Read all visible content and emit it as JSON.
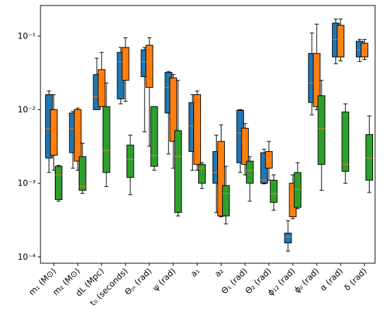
{
  "chart_data": {
    "type": "box",
    "log_y": true,
    "categories": [
      "m₁ (M⊙)",
      "m₂ (M⊙)",
      "dL (Mpc)",
      "t₀ (seconds)",
      "Θⱼₙ (rad)",
      "ψ (rad)",
      "a₁",
      "a₂",
      "Θ₁ (rad)",
      "Θ₂ (rad)",
      "ϕ₁₂ (rad)",
      "ϕⱼₗ (rad)",
      "α (rad)",
      "δ (rad)"
    ],
    "median_color": "#ff7f0e",
    "series": [
      {
        "color": "#1f77b4",
        "whislo": [
          0.0014,
          0.0016,
          0.01,
          0.012,
          0.005,
          0.0025,
          0.0015,
          0.0004,
          0.0014,
          0.00098,
          0.00012,
          0.0085,
          0.042,
          0.045
        ],
        "q1": [
          0.0022,
          0.0026,
          0.01,
          0.014,
          0.028,
          0.009,
          0.0027,
          0.001,
          0.0019,
          0.001,
          0.000155,
          0.0125,
          0.052,
          0.052
        ],
        "median": [
          0.0055,
          0.0055,
          0.015,
          0.045,
          0.045,
          0.02,
          0.006,
          0.0014,
          0.0048,
          0.0011,
          0.000185,
          0.023,
          0.09,
          0.065
        ],
        "q3": [
          0.016,
          0.009,
          0.03,
          0.06,
          0.065,
          0.032,
          0.0125,
          0.0027,
          0.0098,
          0.0026,
          0.00021,
          0.058,
          0.15,
          0.085
        ],
        "whishi": [
          0.018,
          0.0095,
          0.05,
          0.07,
          0.07,
          0.033,
          0.016,
          0.0045,
          0.01,
          0.0029,
          0.00031,
          0.11,
          0.17,
          0.09
        ]
      },
      {
        "color": "#ff7f0e",
        "whislo": [
          0.0015,
          0.0015,
          0.011,
          0.013,
          0.0032,
          0.0016,
          0.0015,
          0.00035,
          0.0013,
          0.0011,
          0.00033,
          0.01,
          0.046,
          0.048
        ],
        "q1": [
          0.0024,
          0.002,
          0.011,
          0.025,
          0.02,
          0.0037,
          0.0018,
          0.00036,
          0.0018,
          0.0016,
          0.00035,
          0.011,
          0.052,
          0.052
        ],
        "median": [
          0.0055,
          0.006,
          0.016,
          0.045,
          0.045,
          0.01,
          0.0058,
          0.0014,
          0.0035,
          0.0022,
          0.00075,
          0.023,
          0.09,
          0.07
        ],
        "q3": [
          0.01,
          0.01,
          0.035,
          0.07,
          0.075,
          0.027,
          0.016,
          0.0037,
          0.0056,
          0.0027,
          0.001,
          0.058,
          0.14,
          0.08
        ],
        "whishi": [
          0.016,
          0.0105,
          0.06,
          0.095,
          0.095,
          0.03,
          0.018,
          0.0062,
          0.0065,
          0.0037,
          0.0013,
          0.145,
          0.17,
          0.09
        ]
      },
      {
        "color": "#2ca02c",
        "whislo": [
          0.00057,
          0.00073,
          0.0009,
          0.0007,
          0.0015,
          0.00036,
          0.00085,
          0.00028,
          0.00057,
          0.00043,
          0.00045,
          0.0008,
          0.001,
          0.00075
        ],
        "q1": [
          0.0006,
          0.0008,
          0.0014,
          0.0012,
          0.0017,
          0.0004,
          0.001,
          0.00036,
          0.001,
          0.00055,
          0.00047,
          0.0018,
          0.00145,
          0.0011
        ],
        "median": [
          0.0013,
          0.0009,
          0.0028,
          0.0021,
          0.0024,
          0.0023,
          0.0016,
          0.00073,
          0.0015,
          0.00072,
          0.00083,
          0.0055,
          0.0018,
          0.0022
        ],
        "q3": [
          0.0017,
          0.0023,
          0.011,
          0.0033,
          0.011,
          0.0052,
          0.0018,
          0.00093,
          0.002,
          0.0011,
          0.0014,
          0.0155,
          0.0093,
          0.0046
        ],
        "whishi": [
          0.00175,
          0.0035,
          0.023,
          0.0045,
          0.011,
          0.025,
          0.0019,
          0.0017,
          0.0023,
          0.0013,
          0.0019,
          0.025,
          0.012,
          0.0082
        ]
      }
    ],
    "ylim": [
      8.2e-05,
      0.26
    ],
    "yticks": [
      {
        "value": 0.0001,
        "label": "10⁻⁴"
      },
      {
        "value": 0.001,
        "label": "10⁻³"
      },
      {
        "value": 0.01,
        "label": "10⁻²"
      },
      {
        "value": 0.1,
        "label": "10⁻¹"
      }
    ]
  }
}
